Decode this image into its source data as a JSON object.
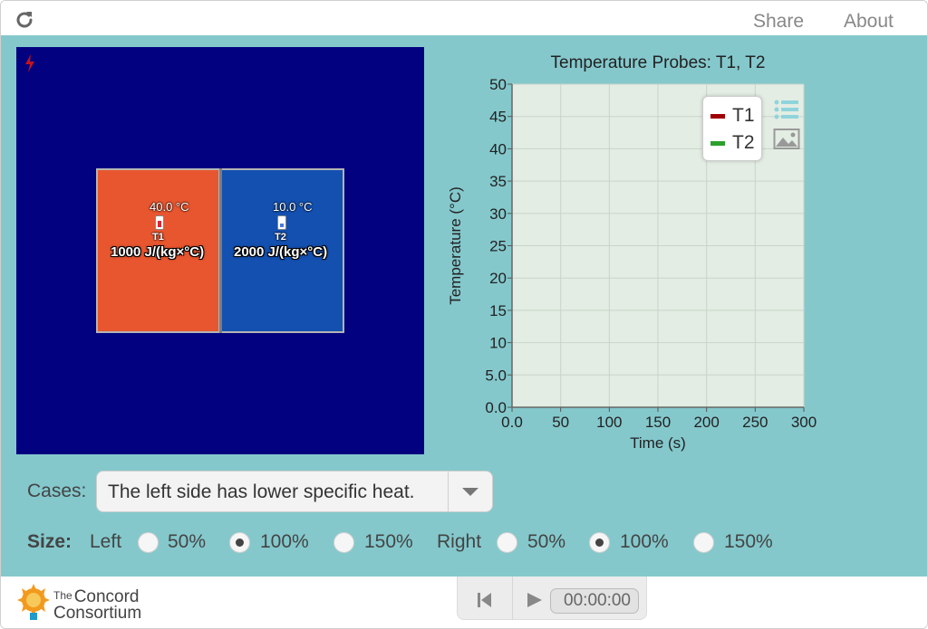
{
  "header": {
    "share_label": "Share",
    "about_label": "About"
  },
  "simulation": {
    "left_block": {
      "probe_temp": "40.0 °C",
      "probe_name": "T1",
      "specific_heat": "1000 J/(kg×°C)",
      "color": "#e8562f"
    },
    "right_block": {
      "probe_temp": "10.0 °C",
      "probe_name": "T2",
      "specific_heat": "2000 J/(kg×°C)",
      "color": "#1350b0"
    },
    "background_color": "#02017f"
  },
  "chart": {
    "title": "Temperature Probes: T1, T2",
    "xlabel": "Time (s)",
    "ylabel": "Temperature (°C)"
  },
  "chart_data": {
    "type": "line",
    "title": "Temperature Probes: T1, T2",
    "xlabel": "Time (s)",
    "ylabel": "Temperature (°C)",
    "xlim": [
      0,
      300
    ],
    "ylim": [
      0,
      50
    ],
    "x_ticks": [
      "0.0",
      "50",
      "100",
      "150",
      "200",
      "250",
      "300"
    ],
    "y_ticks": [
      "0.0",
      "5.0",
      "10",
      "15",
      "20",
      "25",
      "30",
      "35",
      "40",
      "45",
      "50"
    ],
    "grid": true,
    "legend_position": "top-right",
    "series": [
      {
        "name": "T1",
        "color": "#a00000",
        "x": [],
        "y": []
      },
      {
        "name": "T2",
        "color": "#2ca02c",
        "x": [],
        "y": []
      }
    ]
  },
  "controls": {
    "cases_label": "Cases:",
    "cases_value": "The left side has lower specific heat.",
    "size_label": "Size:",
    "left_label": "Left",
    "right_label": "Right",
    "left_options": [
      "50%",
      "100%",
      "150%"
    ],
    "right_options": [
      "50%",
      "100%",
      "150%"
    ],
    "left_selected": "100%",
    "right_selected": "100%"
  },
  "footer": {
    "logo_the": "The",
    "logo_line1": "Concord",
    "logo_line2": "Consortium",
    "time": "00:00:00"
  },
  "icons": {
    "reload": "reload-icon",
    "bolt": "lightning-icon",
    "legend_toggle": "list-icon",
    "snapshot": "image-icon",
    "reset": "reset-icon",
    "play": "play-icon"
  }
}
